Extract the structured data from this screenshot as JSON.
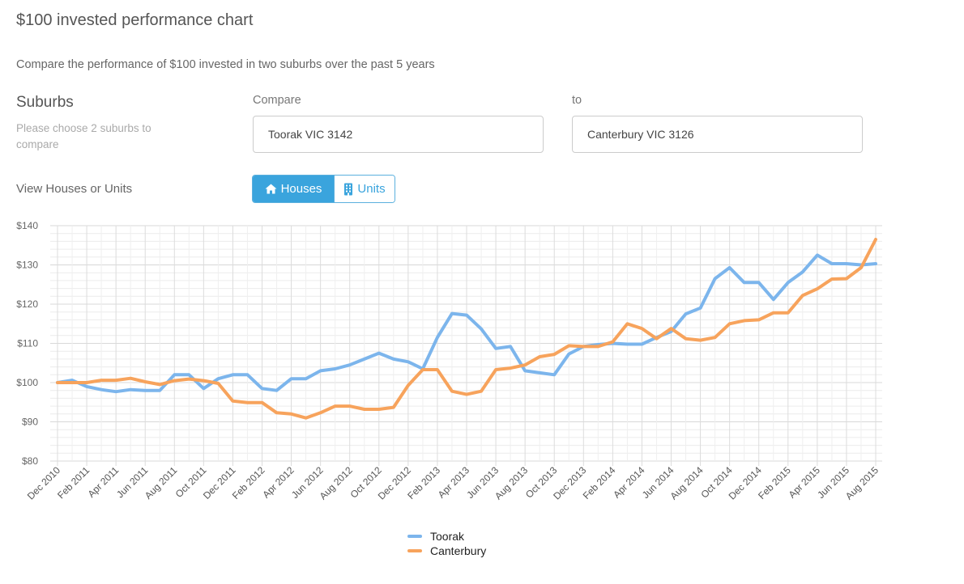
{
  "page": {
    "title": "$100 invested performance chart",
    "description": "Compare the performance of $100 invested in two suburbs over the past 5 years"
  },
  "suburbs": {
    "heading": "Suburbs",
    "help": "Please choose 2 suburbs to compare",
    "compare_label": "Compare",
    "to_label": "to",
    "compare_value": "Toorak VIC 3142",
    "to_value": "Canterbury VIC 3126"
  },
  "view": {
    "label": "View Houses or Units",
    "houses_label": "Houses",
    "units_label": "Units",
    "houses_icon": "home-icon",
    "units_icon": "building-icon",
    "selected": "Houses"
  },
  "chart_data": {
    "type": "line",
    "title": "",
    "xlabel": "",
    "ylabel": "",
    "ylim": [
      80,
      140
    ],
    "yticks": [
      "$80",
      "$90",
      "$100",
      "$110",
      "$120",
      "$130",
      "$140"
    ],
    "grid": true,
    "legend_placement": "bottom-center",
    "x": [
      "Dec 2010",
      "Jan 2011",
      "Feb 2011",
      "Mar 2011",
      "Apr 2011",
      "May 2011",
      "Jun 2011",
      "Jul 2011",
      "Aug 2011",
      "Sep 2011",
      "Oct 2011",
      "Nov 2011",
      "Dec 2011",
      "Jan 2012",
      "Feb 2012",
      "Mar 2012",
      "Apr 2012",
      "May 2012",
      "Jun 2012",
      "Jul 2012",
      "Aug 2012",
      "Sep 2012",
      "Oct 2012",
      "Nov 2012",
      "Dec 2012",
      "Jan 2013",
      "Feb 2013",
      "Mar 2013",
      "Apr 2013",
      "May 2013",
      "Jun 2013",
      "Jul 2013",
      "Aug 2013",
      "Sep 2013",
      "Oct 2013",
      "Nov 2013",
      "Dec 2013",
      "Jan 2014",
      "Feb 2014",
      "Mar 2014",
      "Apr 2014",
      "May 2014",
      "Jun 2014",
      "Jul 2014",
      "Aug 2014",
      "Sep 2014",
      "Oct 2014",
      "Nov 2014",
      "Dec 2014",
      "Jan 2015",
      "Feb 2015",
      "Mar 2015",
      "Apr 2015",
      "May 2015",
      "Jun 2015",
      "Jul 2015",
      "Aug 2015"
    ],
    "xticks": [
      "Dec 2010",
      "Feb 2011",
      "Apr 2011",
      "Jun 2011",
      "Aug 2011",
      "Oct 2011",
      "Dec 2011",
      "Feb 2012",
      "Apr 2012",
      "Jun 2012",
      "Aug 2012",
      "Oct 2012",
      "Dec 2012",
      "Feb 2013",
      "Apr 2013",
      "Jun 2013",
      "Aug 2013",
      "Oct 2013",
      "Dec 2013",
      "Feb 2014",
      "Apr 2014",
      "Jun 2014",
      "Aug 2014",
      "Oct 2014",
      "Dec 2014",
      "Feb 2015",
      "Apr 2015",
      "Jun 2015",
      "Aug 2015"
    ],
    "series": [
      {
        "name": "Toorak",
        "color": "#7cb5ec",
        "values": [
          100,
          100.6,
          99,
          98.2,
          97.7,
          98.2,
          98,
          98,
          102,
          102,
          98.5,
          101,
          102,
          102,
          98.5,
          98,
          101,
          101,
          103,
          103.5,
          104.5,
          106,
          107.5,
          106,
          105.3,
          103.5,
          111.5,
          117.6,
          117.2,
          113.7,
          108.7,
          109.2,
          103,
          102.5,
          102,
          107.3,
          109.2,
          109.7,
          110,
          109.8,
          109.8,
          111.5,
          113,
          117.5,
          119,
          126.5,
          129.3,
          125.5,
          125.5,
          121.2,
          125.5,
          128.2,
          132.5,
          130.3,
          130.3,
          130,
          130.3
        ]
      },
      {
        "name": "Canterbury",
        "color": "#f7a35c",
        "values": [
          100,
          100,
          100,
          100.6,
          100.6,
          101.1,
          100.2,
          99.5,
          100.5,
          100.9,
          100.5,
          99.8,
          95.3,
          94.9,
          94.9,
          92.3,
          92,
          91,
          92.3,
          94,
          94,
          93.2,
          93.2,
          93.7,
          99.3,
          103.3,
          103.3,
          97.8,
          97,
          97.8,
          103.3,
          103.7,
          104.5,
          106.6,
          107.2,
          109.4,
          109.2,
          109.2,
          110.4,
          115,
          113.8,
          111.2,
          113.8,
          111.2,
          110.8,
          111.5,
          115,
          115.8,
          116,
          117.8,
          117.8,
          122.2,
          123.9,
          126.4,
          126.5,
          129.3,
          136.5
        ]
      }
    ]
  }
}
